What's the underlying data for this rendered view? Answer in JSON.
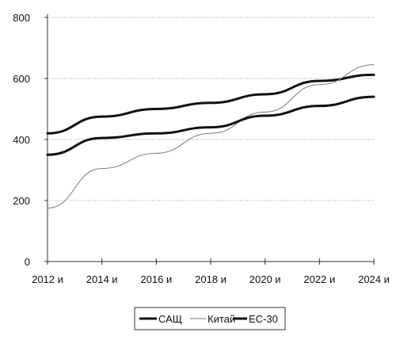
{
  "chart_data": {
    "type": "line",
    "x": [
      "2012 и",
      "2014 и",
      "2016 и",
      "2018 и",
      "2020 и",
      "2022 и",
      "2024 и"
    ],
    "x_ticks": [
      "2012 и",
      "2014 и",
      "2016 и",
      "2018 и",
      "2020 и",
      "2022 и",
      "2024 и"
    ],
    "y_ticks": [
      "0",
      "200",
      "400",
      "600",
      "800"
    ],
    "ylim": [
      0,
      800
    ],
    "grid": {
      "horizontal": true,
      "vertical": false
    },
    "legend_position": "bottom",
    "series": [
      {
        "name": "САЩ",
        "color": "#111111",
        "width": 3,
        "dash": "",
        "values": [
          420,
          475,
          500,
          520,
          548,
          592,
          612
        ]
      },
      {
        "name": "Китай",
        "color": "#7a7a7a",
        "width": 1,
        "dash": "",
        "values": [
          175,
          305,
          355,
          420,
          490,
          580,
          645
        ]
      },
      {
        "name": "ЕС-30",
        "color": "#111111",
        "width": 3,
        "dash": "",
        "values": [
          350,
          405,
          420,
          440,
          478,
          510,
          540
        ]
      }
    ]
  }
}
